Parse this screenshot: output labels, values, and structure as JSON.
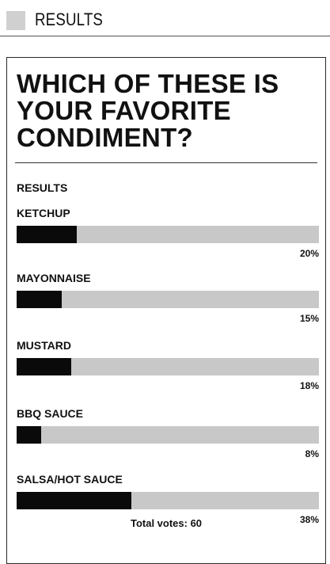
{
  "section": {
    "label": "RESULTS"
  },
  "poll": {
    "question": "WHICH OF THESE IS YOUR FAVORITE CONDIMENT?",
    "results_heading": "RESULTS",
    "options": [
      {
        "label": "KETCHUP",
        "percent": 20,
        "percent_label": "20%"
      },
      {
        "label": "MAYONNAISE",
        "percent": 15,
        "percent_label": "15%"
      },
      {
        "label": "MUSTARD",
        "percent": 18,
        "percent_label": "18%"
      },
      {
        "label": "BBQ SAUCE",
        "percent": 8,
        "percent_label": "8%"
      },
      {
        "label": "SALSA/HOT SAUCE",
        "percent": 38,
        "percent_label": "38%"
      }
    ],
    "total_votes": "Total votes: 60"
  },
  "colors": {
    "bar_fill": "#0a0a0a",
    "bar_track": "#c8c8c8",
    "header_swatch": "#d0d0d0"
  }
}
